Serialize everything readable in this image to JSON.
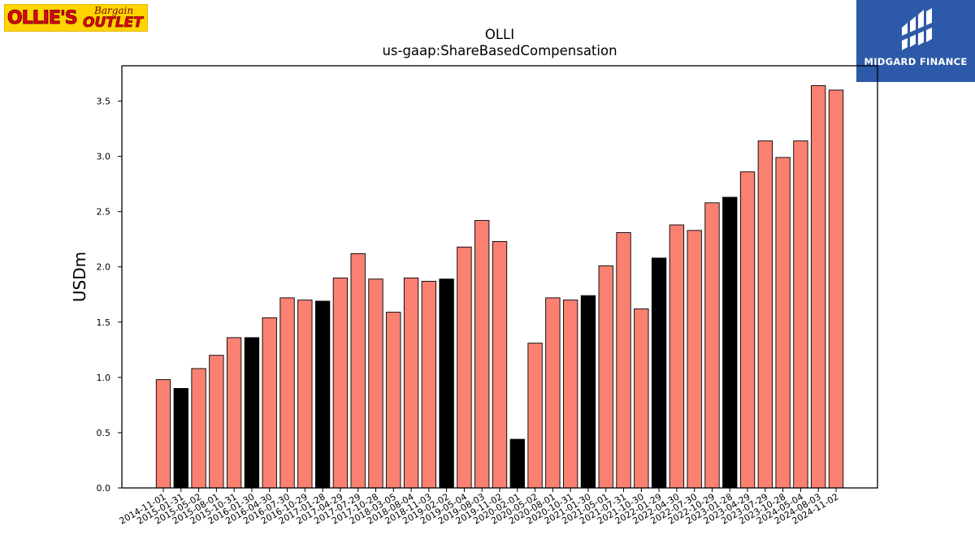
{
  "logos": {
    "left": {
      "text": "OLLIE'S Bargain OUTLET",
      "icon": "ollies-bargain-outlet-logo"
    },
    "right": {
      "text": "MIDGARD FINANCE",
      "icon": "midgard-finance-logo"
    }
  },
  "colors": {
    "default_bar": "#fa8072",
    "highlight_bar": "#000000",
    "logo_yellow": "#ffd400",
    "logo_red": "#e2001a",
    "midgard_blue": "#2d5aa8"
  },
  "chart_data": {
    "type": "bar",
    "title": "OLLI",
    "subtitle": "us-gaap:ShareBasedCompensation",
    "xlabel": "",
    "ylabel": "USDm",
    "ylim": [
      0,
      3.82
    ],
    "yticks": [
      "0.0",
      "0.5",
      "1.0",
      "1.5",
      "2.0",
      "2.5",
      "3.0",
      "3.5"
    ],
    "grid": false,
    "categories": [
      "2014-11-01",
      "2015-01-31",
      "2015-05-02",
      "2015-08-01",
      "2015-10-31",
      "2016-01-30",
      "2016-04-30",
      "2016-07-30",
      "2016-10-29",
      "2017-01-28",
      "2017-04-29",
      "2017-07-29",
      "2017-10-28",
      "2018-03-05",
      "2018-08-04",
      "2018-11-03",
      "2019-02-02",
      "2019-05-04",
      "2019-08-03",
      "2019-11-02",
      "2020-02-01",
      "2020-05-02",
      "2020-08-01",
      "2020-10-31",
      "2021-01-30",
      "2021-05-01",
      "2021-07-31",
      "2021-10-30",
      "2022-01-29",
      "2022-04-30",
      "2022-07-30",
      "2022-10-29",
      "2023-01-28",
      "2023-04-29",
      "2023-07-29",
      "2023-10-28",
      "2024-05-04",
      "2024-08-03",
      "2024-11-02"
    ],
    "values": [
      0.98,
      0.9,
      1.08,
      1.2,
      1.36,
      1.36,
      1.54,
      1.72,
      1.7,
      1.69,
      1.9,
      2.12,
      1.89,
      1.59,
      1.9,
      1.87,
      1.89,
      2.18,
      2.42,
      2.23,
      0.44,
      1.31,
      1.72,
      1.7,
      1.74,
      2.01,
      2.31,
      1.62,
      2.08,
      2.38,
      2.33,
      2.58,
      2.63,
      2.86,
      3.14,
      2.99,
      3.14,
      3.64,
      3.6
    ],
    "highlight": [
      false,
      true,
      false,
      false,
      false,
      true,
      false,
      false,
      false,
      true,
      false,
      false,
      false,
      false,
      false,
      false,
      true,
      false,
      false,
      false,
      true,
      false,
      false,
      false,
      true,
      false,
      false,
      false,
      true,
      false,
      false,
      false,
      true,
      false,
      false,
      false,
      false,
      false,
      false
    ]
  }
}
